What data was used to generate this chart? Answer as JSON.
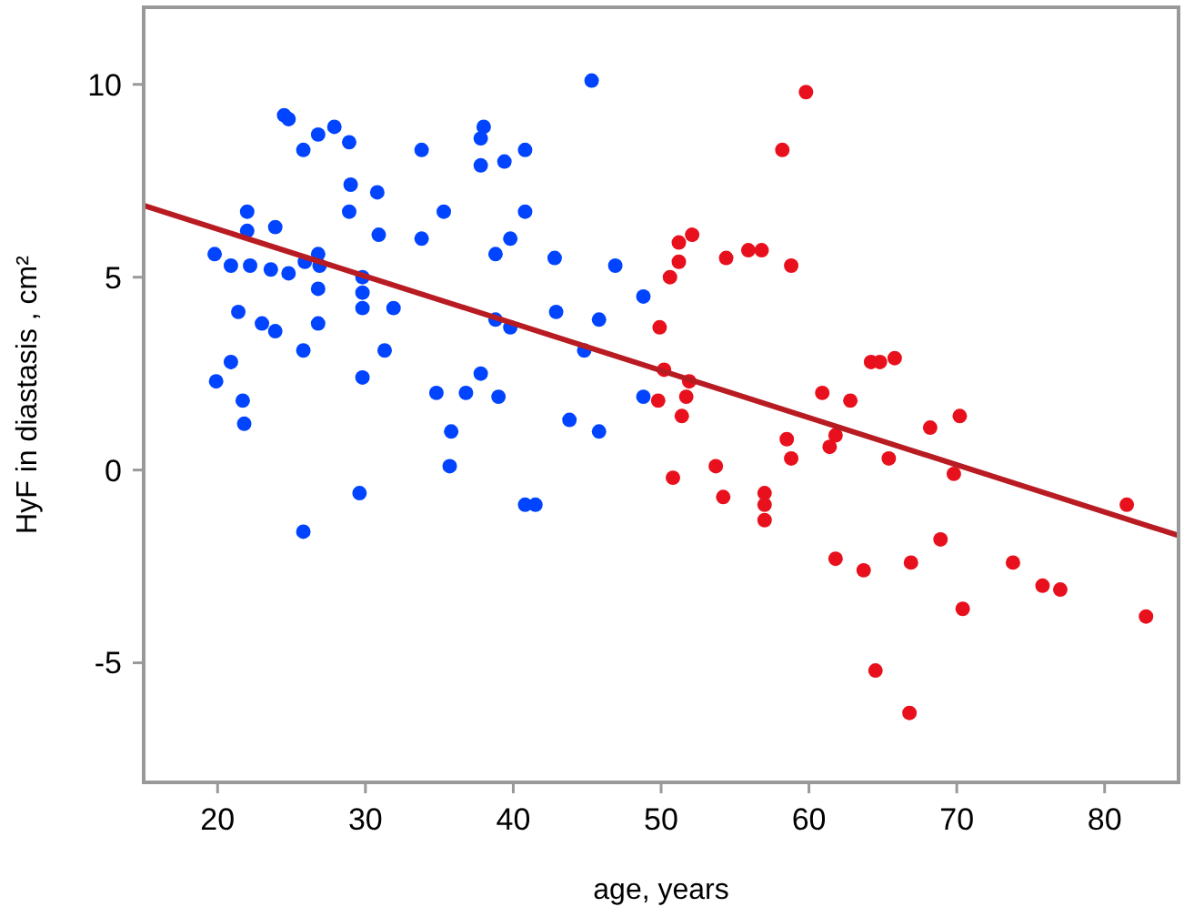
{
  "chart_data": {
    "type": "scatter",
    "xlabel": "age, years",
    "ylabel": "HyF in diastasis , cm²",
    "xlim": [
      15,
      85
    ],
    "ylim": [
      -8.1,
      12
    ],
    "xticks": [
      20,
      30,
      40,
      50,
      60,
      70,
      80
    ],
    "yticks": [
      -5,
      0,
      5,
      10
    ],
    "grid": false,
    "series": [
      {
        "color": "#0044ff",
        "marker": "circle",
        "x": [
          24.5,
          24.8,
          25.8,
          26.8,
          27.9,
          28.9,
          29.0,
          30.8,
          28.9,
          30.9,
          33.8,
          35.3,
          33.8,
          38.0,
          37.8,
          37.8,
          39.4,
          40.8,
          40.8,
          39.8,
          38.8,
          22.0,
          22.0,
          23.9,
          19.8,
          20.9,
          22.2,
          23.6,
          24.8,
          25.9,
          26.8,
          26.9,
          29.8,
          29.8,
          29.8,
          26.8,
          31.9,
          21.4,
          23.0,
          23.9,
          26.8,
          25.8,
          31.3,
          20.9,
          19.9,
          21.7,
          21.8,
          29.8,
          38.8,
          39.8,
          37.8,
          34.8,
          36.8,
          39.0,
          35.8,
          35.7,
          29.6,
          25.8,
          40.8,
          41.5,
          45.3,
          42.8,
          46.9,
          48.8,
          42.9,
          45.8,
          44.8,
          43.8,
          45.8,
          48.8
        ],
        "values": [
          9.2,
          9.1,
          8.3,
          8.7,
          8.9,
          8.5,
          7.4,
          7.2,
          6.7,
          6.1,
          8.3,
          6.7,
          6.0,
          8.9,
          8.6,
          7.9,
          8.0,
          8.3,
          6.7,
          6.0,
          5.6,
          6.7,
          6.2,
          6.3,
          5.6,
          5.3,
          5.3,
          5.2,
          5.1,
          5.4,
          5.6,
          5.3,
          5.0,
          4.6,
          4.2,
          4.7,
          4.2,
          4.1,
          3.8,
          3.6,
          3.8,
          3.1,
          3.1,
          2.8,
          2.3,
          1.8,
          1.2,
          2.4,
          3.9,
          3.7,
          2.5,
          2.0,
          2.0,
          1.9,
          1.0,
          0.1,
          -0.6,
          -1.6,
          -0.9,
          -0.9,
          10.1,
          5.5,
          5.3,
          4.5,
          4.1,
          3.9,
          3.1,
          1.3,
          1.0,
          1.9
        ]
      },
      {
        "color": "#e8101c",
        "marker": "circle",
        "x": [
          59.8,
          58.2,
          52.1,
          51.2,
          51.2,
          50.6,
          54.4,
          55.9,
          56.8,
          58.8,
          49.9,
          50.2,
          51.9,
          51.7,
          49.8,
          51.4,
          50.8,
          53.7,
          54.2,
          57.0,
          57.0,
          57.0,
          58.5,
          58.8,
          60.9,
          62.8,
          61.4,
          61.8,
          64.2,
          64.8,
          65.8,
          65.4,
          68.2,
          70.2,
          69.8,
          61.8,
          63.7,
          66.9,
          68.9,
          70.4,
          73.8,
          75.8,
          77.0,
          81.5,
          82.8,
          64.5,
          66.8
        ],
        "values": [
          9.8,
          8.3,
          6.1,
          5.9,
          5.4,
          5.0,
          5.5,
          5.7,
          5.7,
          5.3,
          3.7,
          2.6,
          2.3,
          1.9,
          1.8,
          1.4,
          -0.2,
          0.1,
          -0.7,
          -0.6,
          -0.9,
          -1.3,
          0.8,
          0.3,
          2.0,
          1.8,
          0.6,
          0.9,
          2.8,
          2.8,
          2.9,
          0.3,
          1.1,
          1.4,
          -0.1,
          -2.3,
          -2.6,
          -2.4,
          -1.8,
          -3.6,
          -2.4,
          -3.0,
          -3.1,
          -0.9,
          -3.8,
          -5.2,
          -6.3
        ]
      },
      {
        "type": "line",
        "color": "#b81c22",
        "x": [
          15,
          85
        ],
        "values": [
          6.86,
          -1.7
        ]
      }
    ]
  }
}
